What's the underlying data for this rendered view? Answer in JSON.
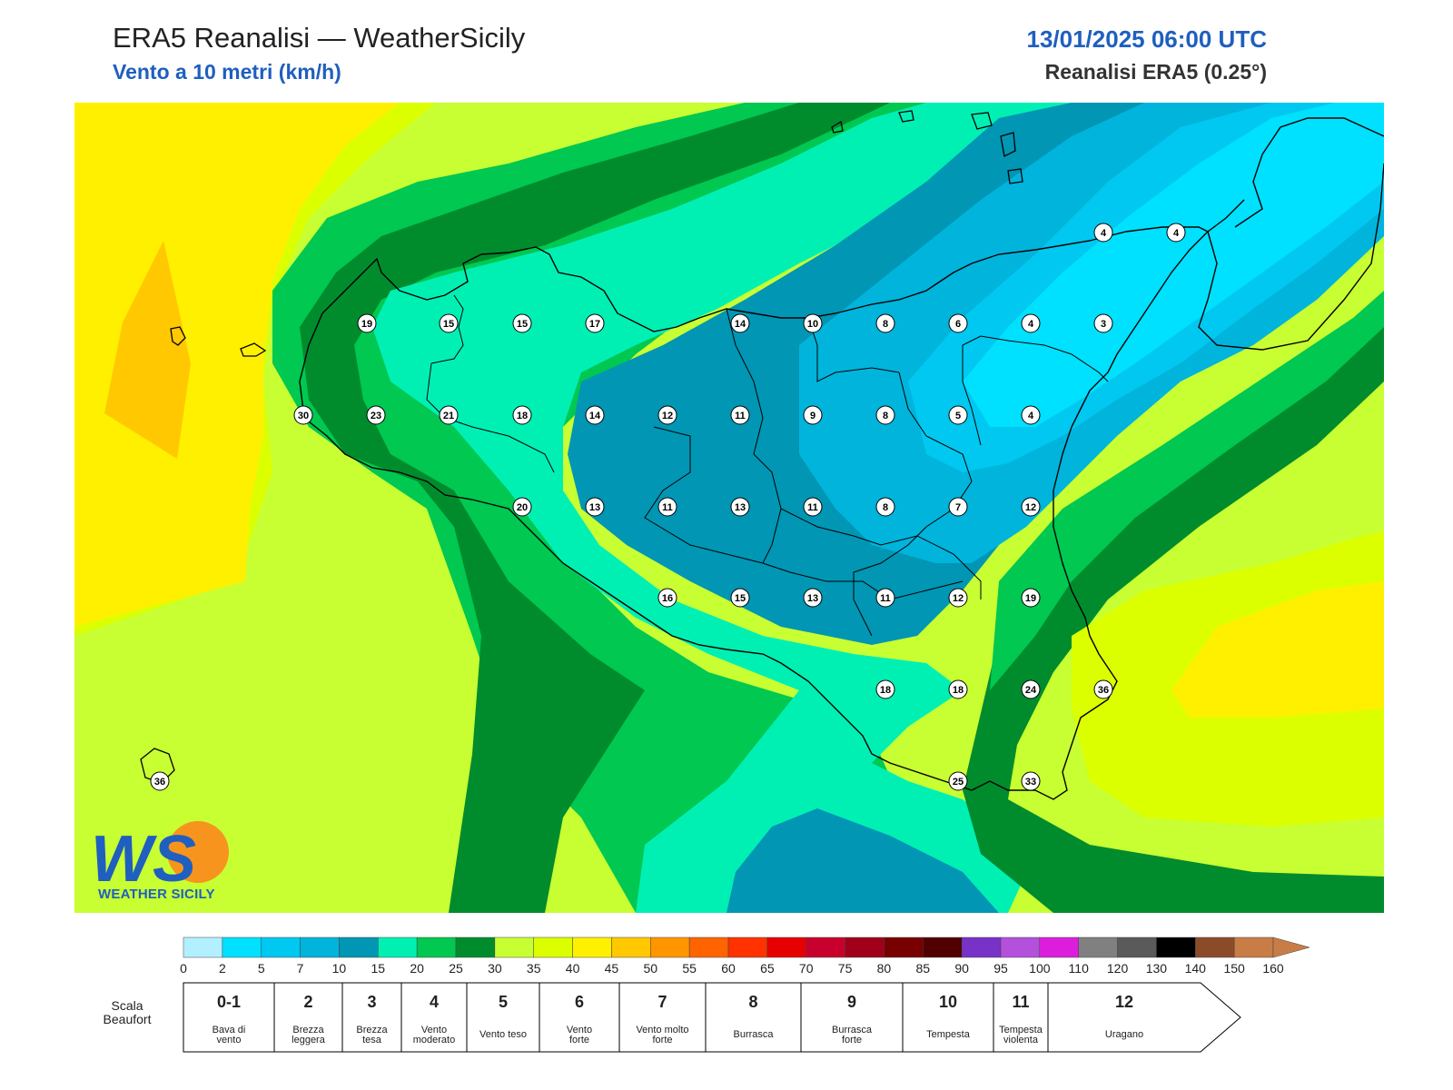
{
  "header": {
    "title": "ERA5 Reanalisi — WeatherSicily",
    "subtitle": "Vento a 10 metri (km/h)",
    "datetime": "13/01/2025 06:00 UTC",
    "model": "Reanalisi ERA5 (0.25°)"
  },
  "logo": {
    "letters": "WS",
    "text": "WEATHER SICILY"
  },
  "stations": [
    {
      "v": "19",
      "c": [
        404,
        356
      ]
    },
    {
      "v": "15",
      "c": [
        494,
        356
      ]
    },
    {
      "v": "15",
      "c": [
        575,
        356
      ]
    },
    {
      "v": "17",
      "c": [
        655,
        356
      ]
    },
    {
      "v": "14",
      "c": [
        815,
        356
      ]
    },
    {
      "v": "10",
      "c": [
        895,
        356
      ]
    },
    {
      "v": "8",
      "c": [
        975,
        356
      ]
    },
    {
      "v": "6",
      "c": [
        1055,
        356
      ]
    },
    {
      "v": "4",
      "c": [
        1135,
        356
      ]
    },
    {
      "v": "3",
      "c": [
        1215,
        356
      ]
    },
    {
      "v": "4",
      "c": [
        1215,
        256
      ]
    },
    {
      "v": "4",
      "c": [
        1295,
        256
      ]
    },
    {
      "v": "30",
      "c": [
        334,
        457
      ]
    },
    {
      "v": "23",
      "c": [
        414,
        457
      ]
    },
    {
      "v": "21",
      "c": [
        494,
        457
      ]
    },
    {
      "v": "18",
      "c": [
        575,
        457
      ]
    },
    {
      "v": "14",
      "c": [
        655,
        457
      ]
    },
    {
      "v": "12",
      "c": [
        735,
        457
      ]
    },
    {
      "v": "11",
      "c": [
        815,
        457
      ]
    },
    {
      "v": "9",
      "c": [
        895,
        457
      ]
    },
    {
      "v": "8",
      "c": [
        975,
        457
      ]
    },
    {
      "v": "5",
      "c": [
        1055,
        457
      ]
    },
    {
      "v": "4",
      "c": [
        1135,
        457
      ]
    },
    {
      "v": "20",
      "c": [
        575,
        558
      ]
    },
    {
      "v": "13",
      "c": [
        655,
        558
      ]
    },
    {
      "v": "11",
      "c": [
        735,
        558
      ]
    },
    {
      "v": "13",
      "c": [
        815,
        558
      ]
    },
    {
      "v": "11",
      "c": [
        895,
        558
      ]
    },
    {
      "v": "8",
      "c": [
        975,
        558
      ]
    },
    {
      "v": "7",
      "c": [
        1055,
        558
      ]
    },
    {
      "v": "12",
      "c": [
        1135,
        558
      ]
    },
    {
      "v": "16",
      "c": [
        735,
        658
      ]
    },
    {
      "v": "15",
      "c": [
        815,
        658
      ]
    },
    {
      "v": "13",
      "c": [
        895,
        658
      ]
    },
    {
      "v": "11",
      "c": [
        975,
        658
      ]
    },
    {
      "v": "12",
      "c": [
        1055,
        658
      ]
    },
    {
      "v": "19",
      "c": [
        1135,
        658
      ]
    },
    {
      "v": "18",
      "c": [
        975,
        759
      ]
    },
    {
      "v": "18",
      "c": [
        1055,
        759
      ]
    },
    {
      "v": "24",
      "c": [
        1135,
        759
      ]
    },
    {
      "v": "36",
      "c": [
        1215,
        759
      ]
    },
    {
      "v": "25",
      "c": [
        1055,
        860
      ]
    },
    {
      "v": "33",
      "c": [
        1135,
        860
      ]
    },
    {
      "v": "36",
      "c": [
        176,
        860
      ]
    }
  ],
  "colorbar": {
    "ticks": [
      "0",
      "2",
      "5",
      "7",
      "10",
      "15",
      "20",
      "25",
      "30",
      "35",
      "40",
      "45",
      "50",
      "55",
      "60",
      "65",
      "70",
      "75",
      "80",
      "85",
      "90",
      "95",
      "100",
      "110",
      "120",
      "130",
      "140",
      "150",
      "160"
    ],
    "colors": [
      "#b3f0ff",
      "#00e0ff",
      "#00c8f0",
      "#00b4dc",
      "#0096b4",
      "#00f0b4",
      "#00c850",
      "#008c2d",
      "#c8ff32",
      "#dcff00",
      "#fff000",
      "#ffc800",
      "#ff9600",
      "#ff6400",
      "#ff3200",
      "#e60000",
      "#c8002d",
      "#a00019",
      "#780000",
      "#500000",
      "#7832c8",
      "#b450dc",
      "#dc1edc",
      "#808080",
      "#5a5a5a",
      "#000000",
      "#8c4b28",
      "#c87d46"
    ]
  },
  "beaufort": {
    "label_line1": "Scala",
    "label_line2": "Beaufort",
    "items": [
      {
        "n": "0-1",
        "d1": "Bava di",
        "d2": "vento"
      },
      {
        "n": "2",
        "d1": "Brezza",
        "d2": "leggera"
      },
      {
        "n": "3",
        "d1": "Brezza",
        "d2": "tesa"
      },
      {
        "n": "4",
        "d1": "Vento",
        "d2": "moderato"
      },
      {
        "n": "5",
        "d1": "Vento teso",
        "d2": ""
      },
      {
        "n": "6",
        "d1": "Vento",
        "d2": "forte"
      },
      {
        "n": "7",
        "d1": "Vento molto",
        "d2": "forte"
      },
      {
        "n": "8",
        "d1": "Burrasca",
        "d2": ""
      },
      {
        "n": "9",
        "d1": "Burrasca",
        "d2": "forte"
      },
      {
        "n": "10",
        "d1": "Tempesta",
        "d2": ""
      },
      {
        "n": "11",
        "d1": "Tempesta",
        "d2": "violenta"
      },
      {
        "n": "12",
        "d1": "Uragano",
        "d2": ""
      }
    ]
  }
}
